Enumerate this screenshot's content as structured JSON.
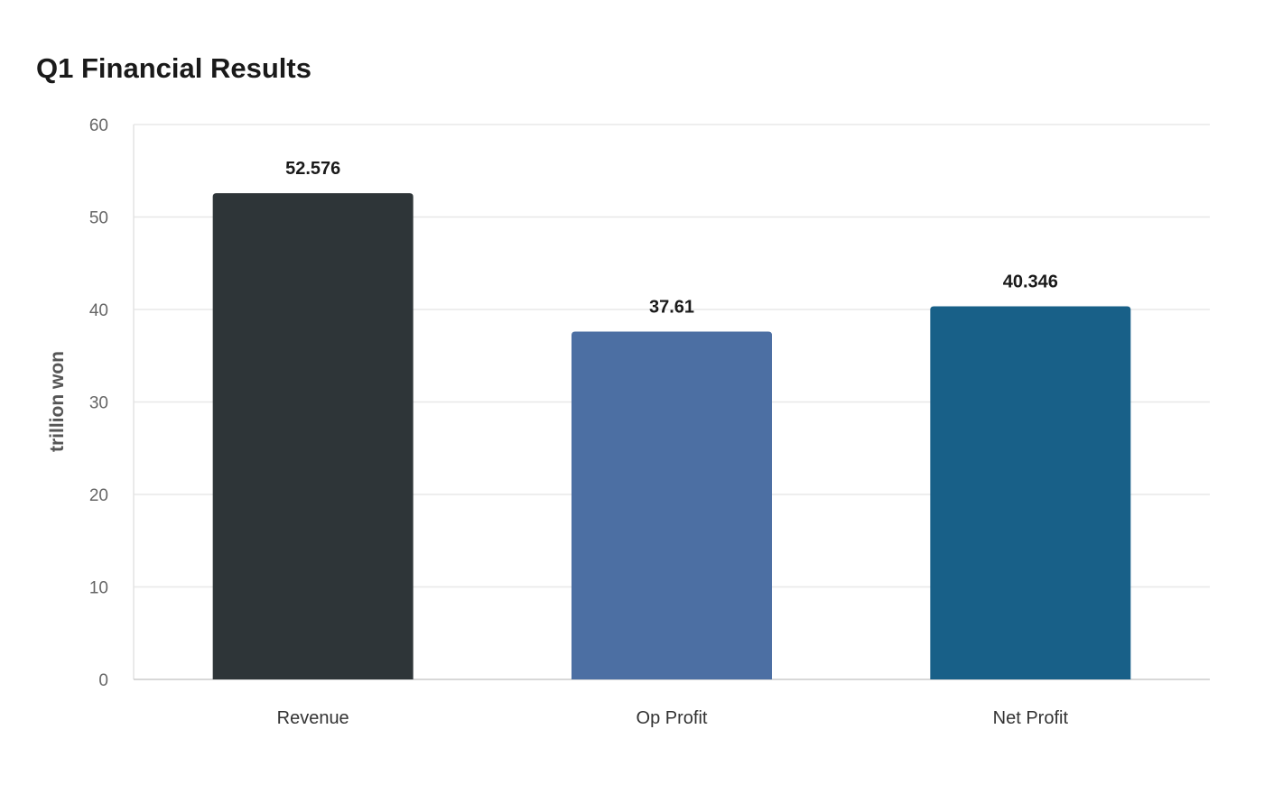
{
  "chart_data": {
    "type": "bar",
    "title": "Q1 Financial Results",
    "xlabel": "",
    "ylabel": "trillion won",
    "categories": [
      "Revenue",
      "Op Profit",
      "Net Profit"
    ],
    "values": [
      52.576,
      37.61,
      40.346
    ],
    "value_labels": [
      "52.576",
      "37.61",
      "40.346"
    ],
    "colors": [
      "#2e3538",
      "#4c6fa3",
      "#186088"
    ],
    "ylim": [
      0,
      60
    ],
    "yticks": [
      0,
      10,
      20,
      30,
      40,
      50,
      60
    ],
    "grid": true,
    "legend": "none"
  }
}
